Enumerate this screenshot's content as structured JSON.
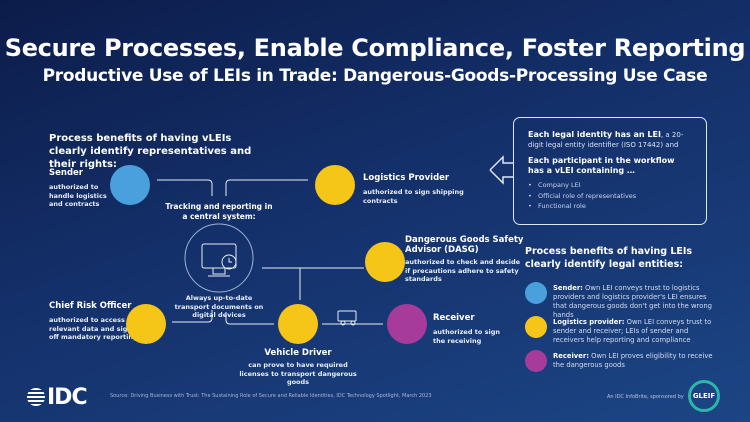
{
  "title": "Secure Processes, Enable Compliance, Foster Reporting",
  "subtitle": "Productive Use of LEIs in Trade: Dangerous-Goods-Processing Use Case",
  "left_heading": "Process benefits of having vLEIs clearly identify representatives and their rights:",
  "central": {
    "top": "Tracking and reporting in a central system:",
    "bottom": "Always up-to-date transport documents on digital devices"
  },
  "roles": {
    "sender": {
      "name": "Sender",
      "desc": "authorized to handle logistics and contracts"
    },
    "logistics": {
      "name": "Logistics Provider",
      "desc": "authorized to sign shipping contracts"
    },
    "dasg": {
      "name": "Dangerous Goods Safety Advisor (DASG)",
      "desc": "authorized to check and decide if precautions adhere to safety standards"
    },
    "cro": {
      "name": "Chief Risk Officer",
      "desc": "authorized to access relevant data and sign off mandatory reporting"
    },
    "driver": {
      "name": "Vehicle Driver",
      "desc": "can prove to have required licenses to transport dangerous goods"
    },
    "receiver": {
      "name": "Receiver",
      "desc": "authorized to sign the receiving"
    }
  },
  "box": {
    "p1_bold": "Each legal identity has an LEI",
    "p1_rest": ", a 20-digit legal entity identifier (ISO 17442) and",
    "p2_bold": "Each participant in the workflow has a vLEI containing …",
    "items": [
      "Company LEI",
      "Official role of representatives",
      "Functional role"
    ]
  },
  "right_heading": "Process benefits of having LEIs clearly identify legal entities:",
  "benefits": [
    {
      "bold": "Sender:",
      "text": " Own LEI conveys trust to logistics providers and logistics provider's LEI ensures that dangerous goods don't get into the wrong hands",
      "color": "#4aa0dc"
    },
    {
      "bold": "Logistics provider:",
      "text": " Own LEI conveys trust to sender and receiver; LEIs of sender and receivers help reporting and compliance",
      "color": "#f5c518"
    },
    {
      "bold": "Receiver:",
      "text": " Own LEI proves eligibility to receive the dangerous goods",
      "color": "#a63b9b"
    }
  ],
  "footer": {
    "logo": "IDC",
    "source": "Source: Driving Business with Trust: The Sustaining Role of Secure and Reliable Identities, IDC Technology Spotlight, March 2023",
    "sponsor": "An IDC InfoBrite, sponsored by",
    "sponsor_logo": "GLEIF"
  }
}
